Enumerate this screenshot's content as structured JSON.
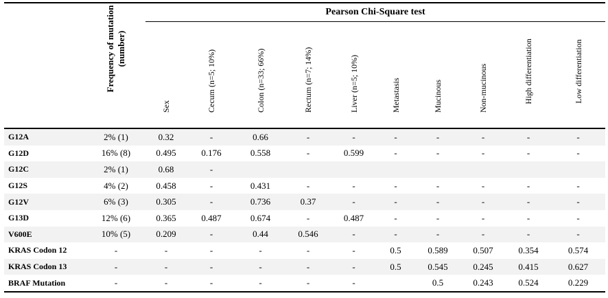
{
  "table": {
    "group_header": "Pearson Chi-Square test",
    "columns": [
      "Frequency of mutation (number)",
      "Sex",
      "Cecum (n=5; 10%)",
      "Colon (n=33; 66%)",
      "Rectum (n=7; 14%)",
      "Liver (n=5; 10%)",
      "Metastasis",
      "Mucinous",
      "Non-mucinous",
      "High differentiation",
      "Low differentiation"
    ],
    "rows": [
      {
        "name": "G12A",
        "cells": [
          "2% (1)",
          "0.32",
          "-",
          "0.66",
          "-",
          "-",
          "-",
          "-",
          "-",
          "-",
          "-"
        ]
      },
      {
        "name": "G12D",
        "cells": [
          "16% (8)",
          "0.495",
          "0.176",
          "0.558",
          "-",
          "0.599",
          "-",
          "-",
          "-",
          "-",
          "-"
        ]
      },
      {
        "name": "G12C",
        "cells": [
          "2% (1)",
          "0.68",
          "-",
          "",
          "",
          "",
          "",
          "",
          "",
          "",
          ""
        ]
      },
      {
        "name": "G12S",
        "cells": [
          "4% (2)",
          "0.458",
          "-",
          "0.431",
          "-",
          "-",
          "-",
          "-",
          "-",
          "-",
          "-"
        ]
      },
      {
        "name": "G12V",
        "cells": [
          "6% (3)",
          "0.305",
          "-",
          "0.736",
          "0.37",
          "-",
          "-",
          "-",
          "-",
          "-",
          "-"
        ]
      },
      {
        "name": "G13D",
        "cells": [
          "12% (6)",
          "0.365",
          "0.487",
          "0.674",
          "-",
          "0.487",
          "-",
          "-",
          "-",
          "-",
          "-"
        ]
      },
      {
        "name": "V600E",
        "cells": [
          "10% (5)",
          "0.209",
          "-",
          "0.44",
          "0.546",
          "-",
          "-",
          "-",
          "-",
          "-",
          "-"
        ]
      },
      {
        "name": "KRAS Codon 12",
        "cells": [
          "-",
          "-",
          "-",
          "-",
          "-",
          "-",
          "0.5",
          "0.589",
          "0.507",
          "0.354",
          "0.574"
        ]
      },
      {
        "name": "KRAS Codon 13",
        "cells": [
          "-",
          "-",
          "-",
          "-",
          "-",
          "-",
          "0.5",
          "0.545",
          "0.245",
          "0.415",
          "0.627"
        ]
      },
      {
        "name": "BRAF Mutation",
        "cells": [
          "-",
          "-",
          "-",
          "-",
          "-",
          "-",
          "",
          "0.5",
          "0.243",
          "0.524",
          "0.229"
        ]
      }
    ]
  }
}
